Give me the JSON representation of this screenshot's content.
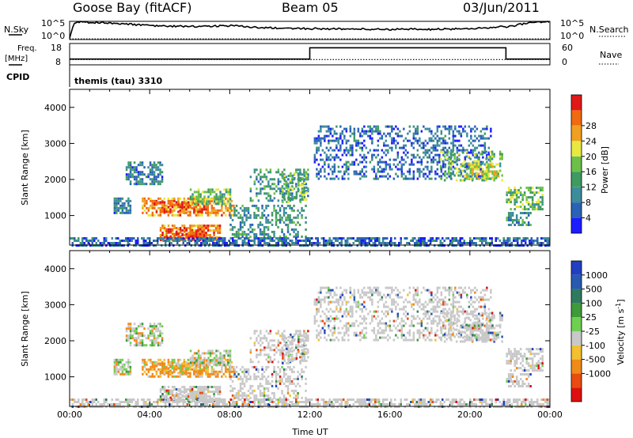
{
  "header": {
    "station": "Goose Bay (fitACF)",
    "beam": "Beam 05",
    "date": "03/Jun/2011"
  },
  "strip_labels": {
    "nsky": "N.Sky",
    "nsky_top": "10^5",
    "nsky_bottom": "10^0",
    "nsearch": "N.Search",
    "nsearch_top": "10^5",
    "nsearch_bottom": "10^0",
    "freq_line1": "Freq.",
    "freq_line2": "[MHz]",
    "freq_top": "18",
    "freq_bottom": "8",
    "nave": "Nave",
    "nave_top": "60",
    "nave_bottom": "0",
    "cpid": "CPID",
    "cpid_value": "themis (tau) 3310"
  },
  "colors": {
    "power_scale": [
      "#1c1cff",
      "#2a62b8",
      "#3c8c9c",
      "#3f9a60",
      "#6cc04a",
      "#e8e840",
      "#f0a020",
      "#f06a10",
      "#e01818"
    ],
    "velocity_scale": [
      "#2040c0",
      "#285ab0",
      "#2f7a5e",
      "#3e9a3a",
      "#6ed050",
      "#c8c8c8",
      "#f2c030",
      "#f08a18",
      "#e84c10",
      "#dd1010"
    ],
    "ground_scatter": "#c8c8c8"
  },
  "chart_data": [
    {
      "type": "heatmap",
      "panel": "power",
      "ylabel": "Slant Range [km]",
      "xlim_hours": [
        0,
        24
      ],
      "ylim_km": [
        180,
        4500
      ],
      "yticks": [
        "1000",
        "2000",
        "3000",
        "4000"
      ],
      "colorbar": {
        "label": "Power [dB]",
        "ticks": [
          "4",
          "8",
          "12",
          "16",
          "20",
          "24",
          "28"
        ],
        "range": [
          0,
          30
        ]
      },
      "echo_regions": [
        {
          "t0": 2.2,
          "t1": 3.0,
          "r0": 1050,
          "r1": 1500,
          "level": 8
        },
        {
          "t0": 3.6,
          "t1": 8.2,
          "r0": 1000,
          "r1": 1500,
          "level": 22
        },
        {
          "t0": 4.2,
          "t1": 6.8,
          "r0": 1100,
          "r1": 1400,
          "level": 26
        },
        {
          "t0": 6.0,
          "t1": 8.0,
          "r0": 1300,
          "r1": 1750,
          "level": 14
        },
        {
          "t0": 4.5,
          "t1": 7.5,
          "r0": 300,
          "r1": 750,
          "level": 24
        },
        {
          "t0": 4.8,
          "t1": 6.6,
          "r0": 350,
          "r1": 650,
          "level": 28
        },
        {
          "t0": 2.8,
          "t1": 4.6,
          "r0": 1900,
          "r1": 2500,
          "level": 8
        },
        {
          "t0": 8.0,
          "t1": 11.8,
          "r0": 400,
          "r1": 1300,
          "level": 10
        },
        {
          "t0": 9.0,
          "t1": 11.9,
          "r0": 1400,
          "r1": 2300,
          "level": 10
        },
        {
          "t0": 10.6,
          "t1": 11.8,
          "r0": 1400,
          "r1": 2200,
          "level": 14
        },
        {
          "t0": 12.2,
          "t1": 21.0,
          "r0": 2000,
          "r1": 3500,
          "level": 6
        },
        {
          "t0": 18.5,
          "t1": 21.6,
          "r0": 2000,
          "r1": 2800,
          "level": 14
        },
        {
          "t0": 19.8,
          "t1": 21.4,
          "r0": 2050,
          "r1": 2450,
          "level": 18
        },
        {
          "t0": 21.8,
          "t1": 23.6,
          "r0": 1200,
          "r1": 1800,
          "level": 14
        },
        {
          "t0": 21.8,
          "t1": 23.0,
          "r0": 750,
          "r1": 1100,
          "level": 10
        },
        {
          "t0": 0.0,
          "t1": 24.0,
          "r0": 180,
          "r1": 400,
          "level": 6
        }
      ]
    },
    {
      "type": "heatmap",
      "panel": "velocity",
      "ylabel": "Slant Range [km]",
      "xlabel": "Time UT",
      "xlim_hours": [
        0,
        24
      ],
      "ylim_km": [
        180,
        4500
      ],
      "xticks": [
        "00:00",
        "04:00",
        "08:00",
        "12:00",
        "16:00",
        "20:00",
        "00:00"
      ],
      "yticks": [
        "1000",
        "2000",
        "3000",
        "4000"
      ],
      "colorbar": {
        "label": "Velocity [m s^-1]",
        "ticks": [
          "1000",
          "500",
          "100",
          "25",
          "-25",
          "-100",
          "-500",
          "-1000"
        ]
      }
    },
    {
      "type": "line",
      "panel": "nsky-nsearch",
      "ylim_log10": [
        0,
        5
      ],
      "nsky_x_hours": [
        0,
        0.2,
        0.5,
        2,
        4,
        6,
        8,
        10,
        12,
        14,
        16,
        18,
        20,
        22,
        23,
        24
      ],
      "nsky_log10": [
        0.4,
        4.5,
        4.8,
        4.6,
        3.8,
        3.6,
        3.8,
        3.2,
        3.0,
        2.9,
        2.8,
        2.8,
        3.0,
        3.6,
        4.6,
        4.9
      ],
      "nsearch_log10_level": 0.2
    },
    {
      "type": "line",
      "panel": "freq-nave",
      "freq_ylim_mhz": [
        8,
        18
      ],
      "nave_ylim": [
        0,
        60
      ],
      "freq_x_hours": [
        0,
        12,
        12,
        21.8,
        21.8,
        24
      ],
      "freq_mhz": [
        10.7,
        10.7,
        16.0,
        16.0,
        10.7,
        10.7
      ],
      "nave_level": 15
    }
  ]
}
